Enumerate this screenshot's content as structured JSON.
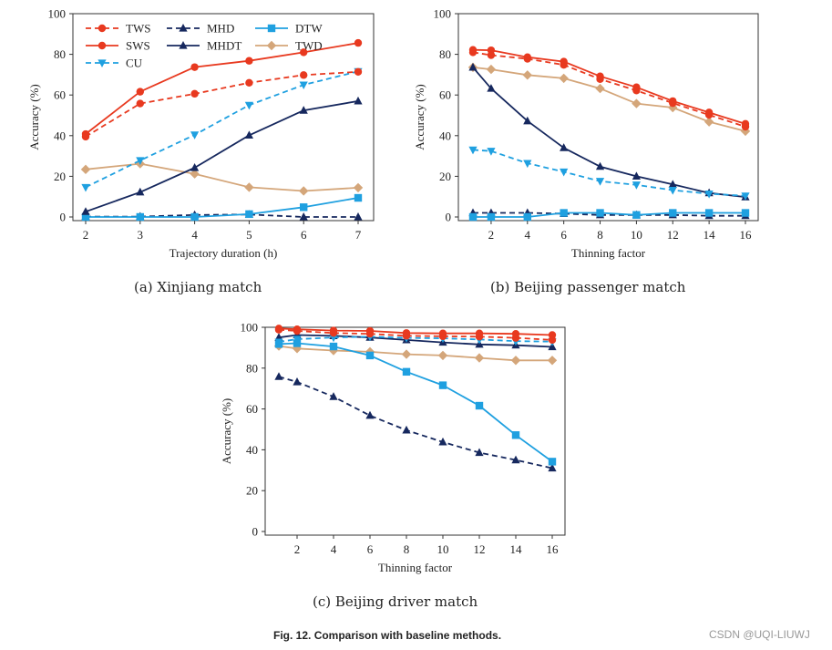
{
  "figure_caption": {
    "label": "Fig. 12.",
    "text": "Comparison with baseline methods."
  },
  "watermark": "CSDN @UQI-LIUWJ",
  "series_styles": {
    "TWS": {
      "color": "#e8391f",
      "dash": true,
      "marker": "circle"
    },
    "SWS": {
      "color": "#e8391f",
      "dash": false,
      "marker": "circle"
    },
    "CU": {
      "color": "#1fa0e0",
      "dash": true,
      "marker": "triangle-down"
    },
    "MHD": {
      "color": "#16285e",
      "dash": true,
      "marker": "triangle-up"
    },
    "MHDT": {
      "color": "#16285e",
      "dash": false,
      "marker": "triangle-up"
    },
    "DTW": {
      "color": "#1fa0e0",
      "dash": false,
      "marker": "square"
    },
    "TWD": {
      "color": "#d4a67a",
      "dash": false,
      "marker": "diamond"
    }
  },
  "chart_data": [
    {
      "id": "a",
      "type": "line",
      "caption": "(a) Xinjiang match",
      "title": "",
      "xlabel": "Trajectory duration (h)",
      "ylabel": "Accuracy (%)",
      "x": [
        2,
        3,
        4,
        5,
        6,
        7
      ],
      "xticks": [
        2,
        3,
        4,
        5,
        6,
        7
      ],
      "yticks": [
        0,
        20,
        40,
        60,
        80,
        100
      ],
      "xlim": [
        1.75,
        7.3
      ],
      "ylim": [
        -2,
        100
      ],
      "legend": {
        "placement": "top-left",
        "columns": 3,
        "entries": [
          "TWS",
          "SWS",
          "CU",
          "MHD",
          "MHDT",
          "DTW",
          "TWD"
        ]
      },
      "grid": false,
      "series": [
        {
          "name": "TWS",
          "values": [
            39.5,
            55.8,
            60.6,
            66.0,
            69.8,
            71.4
          ]
        },
        {
          "name": "SWS",
          "values": [
            40.8,
            61.6,
            73.7,
            76.8,
            81.0,
            85.6
          ]
        },
        {
          "name": "CU",
          "values": [
            14.6,
            27.8,
            40.4,
            55.0,
            65.0,
            71.6
          ]
        },
        {
          "name": "MHD",
          "values": [
            0.2,
            0.2,
            1.0,
            1.2,
            0.0,
            0.0
          ]
        },
        {
          "name": "MHDT",
          "values": [
            2.6,
            12.2,
            24.2,
            40.2,
            52.4,
            57.0
          ]
        },
        {
          "name": "DTW",
          "values": [
            0.0,
            0.0,
            0.0,
            1.4,
            4.8,
            9.4
          ]
        },
        {
          "name": "TWD",
          "values": [
            23.4,
            26.2,
            21.2,
            14.6,
            12.8,
            14.4
          ]
        }
      ]
    },
    {
      "id": "b",
      "type": "line",
      "caption": "(b) Beijing passenger match",
      "title": "",
      "xlabel": "Thinning factor",
      "ylabel": "Accuracy (%)",
      "x": [
        1,
        2,
        4,
        6,
        8,
        10,
        12,
        14,
        16
      ],
      "xticks": [
        2,
        4,
        6,
        8,
        10,
        12,
        14,
        16
      ],
      "yticks": [
        0,
        20,
        40,
        60,
        80,
        100
      ],
      "xlim": [
        0.0,
        16.7
      ],
      "ylim": [
        -2,
        100
      ],
      "legend": null,
      "grid": false,
      "series": [
        {
          "name": "TWS",
          "values": [
            81.0,
            79.6,
            77.8,
            74.8,
            67.8,
            62.2,
            56.0,
            50.2,
            44.4
          ]
        },
        {
          "name": "SWS",
          "values": [
            82.2,
            82.0,
            78.6,
            76.4,
            69.2,
            63.8,
            57.0,
            51.4,
            45.8
          ]
        },
        {
          "name": "CU",
          "values": [
            33.0,
            32.4,
            26.4,
            22.2,
            17.6,
            15.8,
            13.2,
            11.4,
            10.4
          ]
        },
        {
          "name": "MHD",
          "values": [
            2.0,
            2.0,
            2.0,
            1.6,
            1.0,
            1.0,
            1.0,
            0.6,
            0.6
          ]
        },
        {
          "name": "MHDT",
          "values": [
            73.6,
            63.2,
            47.2,
            34.0,
            24.8,
            20.0,
            16.0,
            11.8,
            9.8
          ]
        },
        {
          "name": "DTW",
          "values": [
            0.0,
            0.0,
            0.0,
            2.0,
            2.0,
            1.0,
            2.0,
            2.0,
            2.0
          ]
        },
        {
          "name": "TWD",
          "values": [
            73.6,
            72.6,
            69.8,
            68.2,
            63.2,
            55.8,
            53.8,
            46.8,
            42.2
          ]
        }
      ]
    },
    {
      "id": "c",
      "type": "line",
      "caption": "(c) Beijing driver match",
      "title": "",
      "xlabel": "Thinning factor",
      "ylabel": "Accuracy (%)",
      "x": [
        1,
        2,
        4,
        6,
        8,
        10,
        12,
        14,
        16
      ],
      "xticks": [
        2,
        4,
        6,
        8,
        10,
        12,
        14,
        16
      ],
      "yticks": [
        0,
        20,
        40,
        60,
        80,
        100
      ],
      "xlim": [
        0.0,
        16.7
      ],
      "ylim": [
        -2,
        100
      ],
      "legend": null,
      "grid": false,
      "series": [
        {
          "name": "TWS",
          "values": [
            98.8,
            98.2,
            97.2,
            96.8,
            95.8,
            95.6,
            95.4,
            94.8,
            93.8
          ]
        },
        {
          "name": "SWS",
          "values": [
            99.4,
            99.0,
            98.4,
            98.2,
            97.2,
            97.0,
            97.0,
            96.8,
            96.2
          ]
        },
        {
          "name": "CU",
          "values": [
            92.8,
            94.2,
            95.0,
            95.4,
            94.8,
            94.6,
            94.0,
            93.2,
            93.0
          ]
        },
        {
          "name": "MHD",
          "values": [
            75.8,
            73.2,
            66.0,
            56.8,
            49.6,
            43.8,
            38.6,
            35.0,
            31.0
          ]
        },
        {
          "name": "MHDT",
          "values": [
            95.0,
            96.2,
            95.8,
            95.0,
            93.8,
            92.6,
            91.6,
            91.2,
            90.4
          ]
        },
        {
          "name": "DTW",
          "values": [
            91.8,
            92.2,
            90.6,
            86.2,
            78.2,
            71.6,
            61.6,
            47.2,
            34.2
          ]
        },
        {
          "name": "TWD",
          "values": [
            90.8,
            89.6,
            88.6,
            88.0,
            86.8,
            86.2,
            85.0,
            83.8,
            83.8
          ]
        }
      ]
    }
  ]
}
